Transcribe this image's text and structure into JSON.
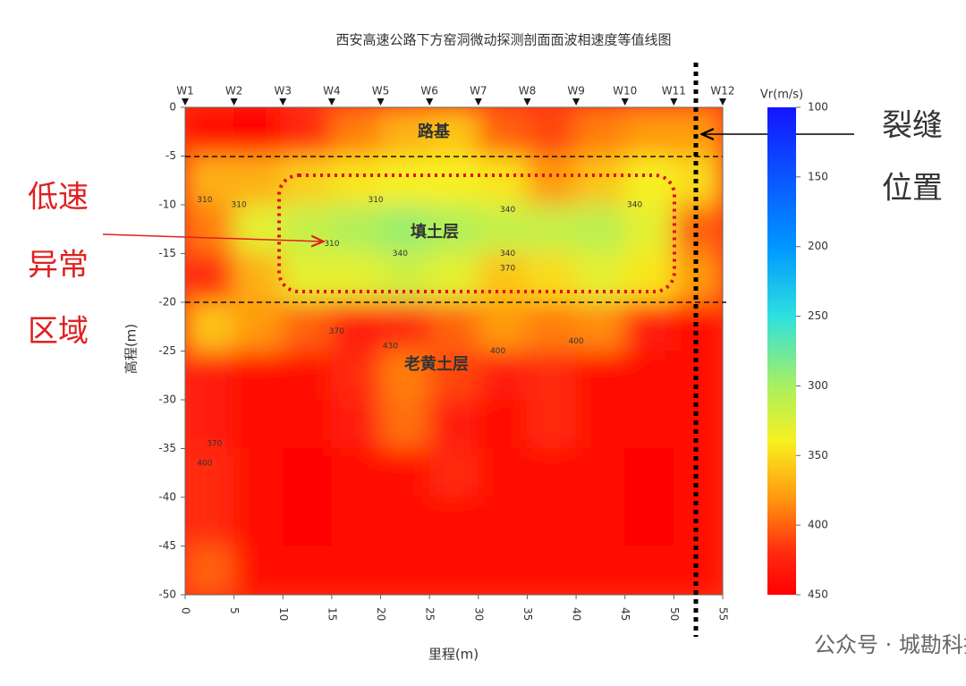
{
  "chart_data": {
    "type": "contour",
    "title": "西安高速公路下方窑洞微动探测剖面面波相速度等值线图",
    "x_label": "里程(m)",
    "y_label": "高程(m)",
    "xlim": [
      0,
      55
    ],
    "ylim": [
      -50,
      0
    ],
    "xticks": [
      0,
      5,
      10,
      15,
      20,
      25,
      30,
      35,
      40,
      45,
      50,
      55
    ],
    "yticks": [
      0,
      -5,
      -10,
      -15,
      -20,
      -25,
      -30,
      -35,
      -40,
      -45,
      -50
    ],
    "stations": [
      {
        "name": "W1",
        "x": 0
      },
      {
        "name": "W2",
        "x": 5
      },
      {
        "name": "W3",
        "x": 10
      },
      {
        "name": "W4",
        "x": 15
      },
      {
        "name": "W5",
        "x": 20
      },
      {
        "name": "W6",
        "x": 25
      },
      {
        "name": "W7",
        "x": 30
      },
      {
        "name": "W8",
        "x": 35
      },
      {
        "name": "W9",
        "x": 40
      },
      {
        "name": "W10",
        "x": 45
      },
      {
        "name": "W11",
        "x": 50
      },
      {
        "name": "W12",
        "x": 55
      }
    ],
    "x": [
      2.5,
      7.5,
      12.5,
      17.5,
      22.5,
      27.5,
      32.5,
      37.5,
      42.5,
      47.5,
      52.5
    ],
    "y": [
      -2.5,
      -7.5,
      -12.5,
      -17.5,
      -22.5,
      -27.5,
      -32.5,
      -37.5,
      -42.5,
      -47.5
    ],
    "z": [
      [
        440,
        450,
        420,
        390,
        370,
        360,
        400,
        410,
        390,
        380,
        380
      ],
      [
        370,
        370,
        355,
        345,
        340,
        340,
        345,
        380,
        360,
        340,
        350
      ],
      [
        390,
        330,
        315,
        305,
        295,
        305,
        315,
        315,
        310,
        330,
        400
      ],
      [
        420,
        370,
        330,
        330,
        320,
        330,
        360,
        350,
        330,
        345,
        380
      ],
      [
        360,
        380,
        400,
        430,
        420,
        400,
        380,
        390,
        385,
        430,
        440
      ],
      [
        430,
        440,
        440,
        420,
        390,
        410,
        430,
        420,
        440,
        440,
        440
      ],
      [
        430,
        440,
        440,
        430,
        395,
        430,
        440,
        420,
        440,
        440,
        440
      ],
      [
        420,
        440,
        450,
        440,
        440,
        420,
        440,
        440,
        440,
        450,
        440
      ],
      [
        420,
        440,
        450,
        440,
        440,
        440,
        440,
        440,
        440,
        450,
        440
      ],
      [
        400,
        440,
        440,
        440,
        440,
        440,
        440,
        440,
        440,
        440,
        440
      ]
    ],
    "colorbar_label": "Vr(m/s)",
    "clim": [
      100,
      450
    ],
    "cticks": [
      100,
      150,
      200,
      250,
      300,
      350,
      400,
      450
    ],
    "colorscale": [
      {
        "value": 100,
        "color": "#1414ff"
      },
      {
        "value": 200,
        "color": "#0096ff"
      },
      {
        "value": 250,
        "color": "#2ee0e0"
      },
      {
        "value": 300,
        "color": "#a8f060"
      },
      {
        "value": 340,
        "color": "#f8f020"
      },
      {
        "value": 380,
        "color": "#ff9a10"
      },
      {
        "value": 420,
        "color": "#ff2a10"
      },
      {
        "value": 450,
        "color": "#ff0000"
      }
    ],
    "contour_labels": [
      {
        "x": 2,
        "y": -9.5,
        "value": 310
      },
      {
        "x": 5.5,
        "y": -10,
        "value": 310
      },
      {
        "x": 19.5,
        "y": -9.5,
        "value": 310
      },
      {
        "x": 15,
        "y": -14,
        "value": 310
      },
      {
        "x": 22,
        "y": -15,
        "value": 340
      },
      {
        "x": 33,
        "y": -10.5,
        "value": 340
      },
      {
        "x": 33,
        "y": -15,
        "value": 340
      },
      {
        "x": 46,
        "y": -10,
        "value": 340
      },
      {
        "x": 33,
        "y": -16.5,
        "value": 370
      },
      {
        "x": 15.5,
        "y": -23,
        "value": 370
      },
      {
        "x": 21,
        "y": -24.5,
        "value": 430
      },
      {
        "x": 32,
        "y": -25,
        "value": 400
      },
      {
        "x": 40,
        "y": -24,
        "value": 400
      },
      {
        "x": 3,
        "y": -34.5,
        "value": 370
      },
      {
        "x": 2,
        "y": -36.5,
        "value": 400
      }
    ],
    "annotations": {
      "roadbed": "路基",
      "fill": "填土层",
      "loess": "老黄土层",
      "crack_1": "裂缝",
      "crack_2": "位置",
      "low_1": "低速",
      "low_2": "异常",
      "low_3": "区域"
    },
    "watermark": "公众号 · 城勘科技"
  }
}
